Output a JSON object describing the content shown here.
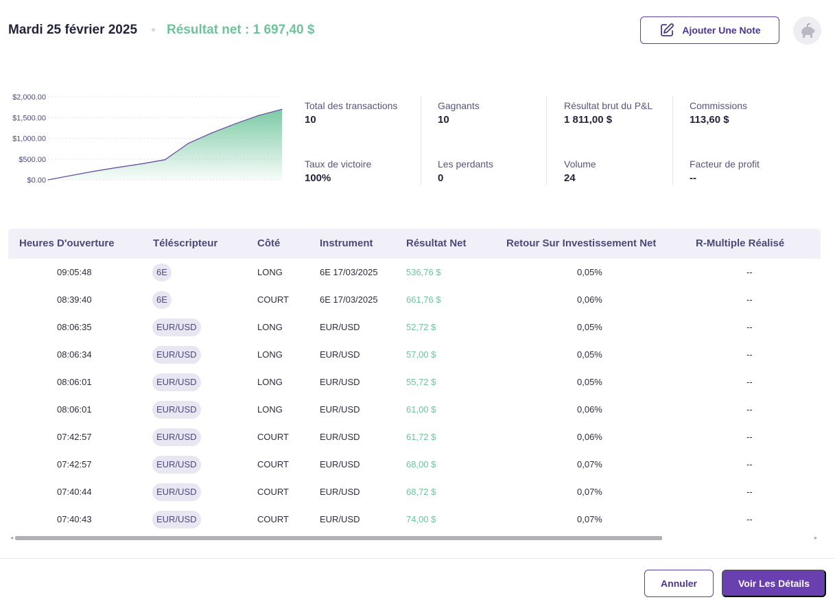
{
  "header": {
    "date": "Mardi 25 février 2025",
    "net_result": "Résultat net : 1 697,40 $",
    "add_note_label": "Ajouter Une Note"
  },
  "chart_data": {
    "type": "area",
    "x": [
      0,
      1,
      2,
      3,
      4,
      5,
      6,
      7,
      8,
      9,
      10
    ],
    "values": [
      0,
      105,
      210,
      300,
      385,
      485,
      880,
      1130,
      1350,
      1550,
      1697.4
    ],
    "yticks": [
      "$2,000.00",
      "$1,500.00",
      "$1,000.00",
      "$500.00",
      "$0.00"
    ],
    "ylim": [
      0,
      2000
    ],
    "grid": true,
    "line_color": "#6a4fa0",
    "fill_color": "#6cc49a"
  },
  "stats": [
    {
      "label": "Total des transactions",
      "value": "10"
    },
    {
      "label": "Taux de victoire",
      "value": "100%"
    },
    {
      "label": "Gagnants",
      "value": "10"
    },
    {
      "label": "Les perdants",
      "value": "0"
    },
    {
      "label": "Résultat brut du P&L",
      "value": "1 811,00 $"
    },
    {
      "label": "Volume",
      "value": "24"
    },
    {
      "label": "Commissions",
      "value": "113,60 $"
    },
    {
      "label": "Facteur de profit",
      "value": "--"
    }
  ],
  "table": {
    "columns": [
      "Heures D'ouverture",
      "Téléscripteur",
      "Côté",
      "Instrument",
      "Résultat Net",
      "Retour Sur Investissement Net",
      "R-Multiple Réalisé"
    ],
    "rows": [
      [
        "09:05:48",
        "6E",
        "LONG",
        "6E 17/03/2025",
        "536,76 $",
        "0,05%",
        "--"
      ],
      [
        "08:39:40",
        "6E",
        "COURT",
        "6E 17/03/2025",
        "661,76 $",
        "0,06%",
        "--"
      ],
      [
        "08:06:35",
        "EUR/USD",
        "LONG",
        "EUR/USD",
        "52,72 $",
        "0,05%",
        "--"
      ],
      [
        "08:06:34",
        "EUR/USD",
        "LONG",
        "EUR/USD",
        "57,00 $",
        "0,05%",
        "--"
      ],
      [
        "08:06:01",
        "EUR/USD",
        "LONG",
        "EUR/USD",
        "55,72 $",
        "0,05%",
        "--"
      ],
      [
        "08:06:01",
        "EUR/USD",
        "LONG",
        "EUR/USD",
        "61,00 $",
        "0,06%",
        "--"
      ],
      [
        "07:42:57",
        "EUR/USD",
        "COURT",
        "EUR/USD",
        "61,72 $",
        "0,06%",
        "--"
      ],
      [
        "07:42:57",
        "EUR/USD",
        "COURT",
        "EUR/USD",
        "68,00 $",
        "0,07%",
        "--"
      ],
      [
        "07:40:44",
        "EUR/USD",
        "COURT",
        "EUR/USD",
        "68,72 $",
        "0,07%",
        "--"
      ],
      [
        "07:40:43",
        "EUR/USD",
        "COURT",
        "EUR/USD",
        "74,00 $",
        "0,07%",
        "--"
      ]
    ]
  },
  "footer": {
    "cancel_label": "Annuler",
    "details_label": "Voir Les Détails"
  },
  "colors": {
    "accent": "#6a3fb0",
    "positive": "#6cc49a"
  }
}
